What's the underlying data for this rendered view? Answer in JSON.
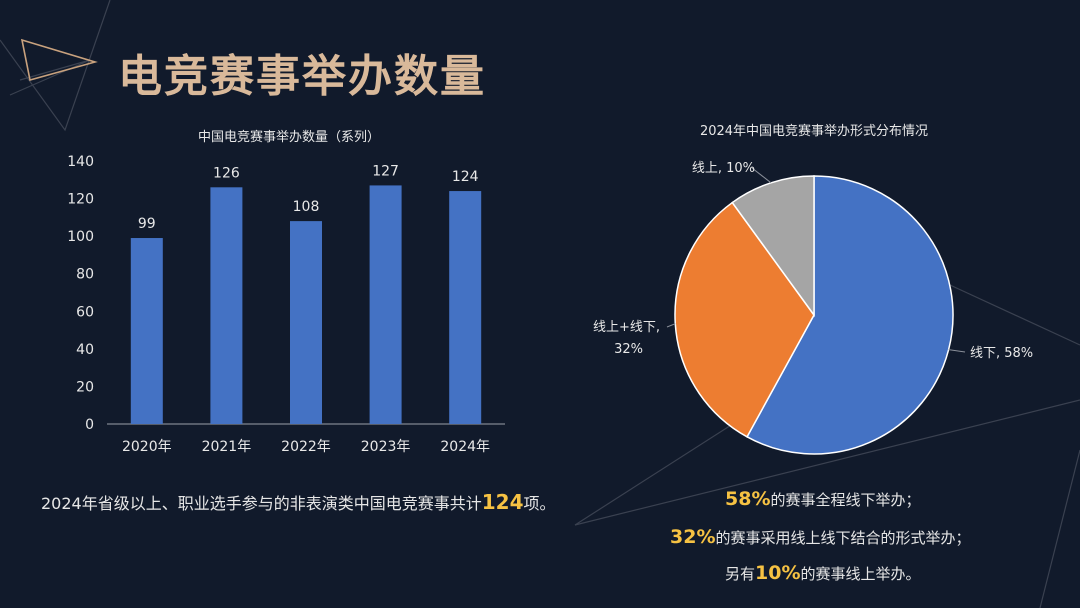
{
  "page": {
    "title": "电竞赛事举办数量",
    "summary": {
      "before": "2024年省级以上、职业选手参与的非表演类中国电竞赛事共计",
      "number": "124",
      "after": "项。"
    },
    "notes": [
      {
        "num": "58%",
        "text": "的赛事全程线下举办；"
      },
      {
        "num": "32%",
        "text": "的赛事采用线上线下结合的形式举办；"
      },
      {
        "prefix": "另有",
        "num": "10%",
        "text": "的赛事线上举办。"
      }
    ]
  },
  "colors": {
    "bar": "#4472c4",
    "axis_text": "#e8e8e8",
    "highlight": "#f6c243",
    "title": "#d9b99a"
  },
  "chart_data": [
    {
      "type": "bar",
      "title": "中国电竞赛事举办数量（系列）",
      "categories": [
        "2020年",
        "2021年",
        "2022年",
        "2023年",
        "2024年"
      ],
      "values": [
        99,
        126,
        108,
        127,
        124
      ],
      "ylim": [
        0,
        140
      ],
      "yticks": [
        0,
        20,
        40,
        60,
        80,
        100,
        120,
        140
      ],
      "grid": false
    },
    {
      "type": "pie",
      "title": "2024年中国电竞赛事举办形式分布情况",
      "slices": [
        {
          "label": "线下",
          "value": 58,
          "text": "线下, 58%",
          "color": "#4472c4"
        },
        {
          "label": "线上+线下",
          "value": 32,
          "text": "线上+线下,|32%",
          "color": "#ed7d31"
        },
        {
          "label": "线上",
          "value": 10,
          "text": "线上, 10%",
          "color": "#a5a5a5"
        }
      ]
    }
  ]
}
